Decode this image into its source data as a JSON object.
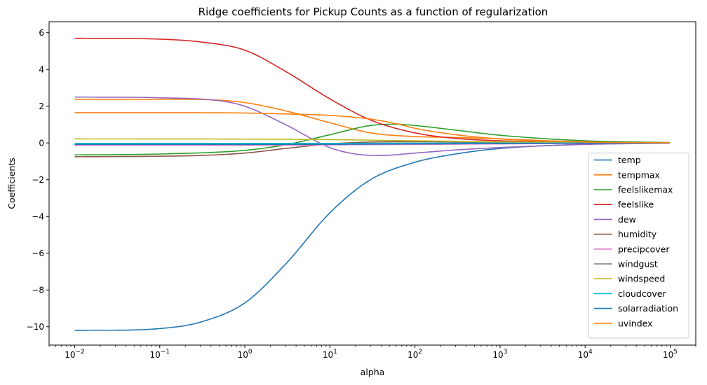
{
  "chart_data": {
    "type": "line",
    "title": "Ridge coefficients for Pickup Counts as a function of regularization",
    "xlabel": "alpha",
    "ylabel": "Coefficients",
    "xscale": "log",
    "xlim": [
      0.005,
      200000
    ],
    "ylim": [
      -11,
      6.6
    ],
    "yticks": [
      -10,
      -8,
      -6,
      -4,
      -2,
      0,
      2,
      4,
      6
    ],
    "ytick_labels": [
      "−10",
      "−8",
      "−6",
      "−4",
      "−2",
      "0",
      "2",
      "4",
      "6"
    ],
    "xticks": [
      0.01,
      0.1,
      1,
      10,
      100,
      1000,
      10000,
      100000
    ],
    "xtick_labels": [
      {
        "base": "10",
        "exp": "−2"
      },
      {
        "base": "10",
        "exp": "−1"
      },
      {
        "base": "10",
        "exp": "0"
      },
      {
        "base": "10",
        "exp": "1"
      },
      {
        "base": "10",
        "exp": "2"
      },
      {
        "base": "10",
        "exp": "3"
      },
      {
        "base": "10",
        "exp": "4"
      },
      {
        "base": "10",
        "exp": "5"
      }
    ],
    "legend_position": "lower right",
    "grid": false,
    "series": [
      {
        "name": "temp",
        "color": "#1f77b4",
        "points": [
          [
            0.01,
            -10.2
          ],
          [
            0.1,
            -10.1
          ],
          [
            0.3,
            -9.75
          ],
          [
            1,
            -8.7
          ],
          [
            3,
            -6.6
          ],
          [
            10,
            -3.8
          ],
          [
            30,
            -2.0
          ],
          [
            100,
            -1.05
          ],
          [
            300,
            -0.6
          ],
          [
            1000,
            -0.3
          ],
          [
            10000,
            -0.07
          ],
          [
            100000,
            0
          ]
        ]
      },
      {
        "name": "tempmax",
        "color": "#ff7f0e",
        "points": [
          [
            0.01,
            2.38
          ],
          [
            0.1,
            2.38
          ],
          [
            0.5,
            2.33
          ],
          [
            1,
            2.2
          ],
          [
            3,
            1.75
          ],
          [
            10,
            1.1
          ],
          [
            30,
            0.55
          ],
          [
            100,
            0.35
          ],
          [
            300,
            0.3
          ],
          [
            1000,
            0.22
          ],
          [
            10000,
            0.06
          ],
          [
            100000,
            0.01
          ]
        ]
      },
      {
        "name": "feelslikemax",
        "color": "#2ca02c",
        "points": [
          [
            0.01,
            -0.65
          ],
          [
            0.1,
            -0.6
          ],
          [
            1,
            -0.4
          ],
          [
            3,
            -0.1
          ],
          [
            10,
            0.45
          ],
          [
            30,
            0.95
          ],
          [
            60,
            1.02
          ],
          [
            100,
            0.95
          ],
          [
            300,
            0.7
          ],
          [
            1000,
            0.42
          ],
          [
            10000,
            0.12
          ],
          [
            100000,
            0.02
          ]
        ]
      },
      {
        "name": "feelslike",
        "color": "#d62728",
        "points": [
          [
            0.01,
            5.7
          ],
          [
            0.1,
            5.65
          ],
          [
            0.3,
            5.5
          ],
          [
            1,
            5.05
          ],
          [
            3,
            3.9
          ],
          [
            10,
            2.4
          ],
          [
            30,
            1.25
          ],
          [
            100,
            0.55
          ],
          [
            300,
            0.25
          ],
          [
            1000,
            0.12
          ],
          [
            10000,
            0.03
          ],
          [
            100000,
            0
          ]
        ]
      },
      {
        "name": "dew",
        "color": "#9467bd",
        "points": [
          [
            0.01,
            2.5
          ],
          [
            0.1,
            2.46
          ],
          [
            0.5,
            2.3
          ],
          [
            1,
            2.0
          ],
          [
            3,
            1.0
          ],
          [
            10,
            -0.25
          ],
          [
            20,
            -0.6
          ],
          [
            40,
            -0.68
          ],
          [
            100,
            -0.55
          ],
          [
            300,
            -0.38
          ],
          [
            1000,
            -0.25
          ],
          [
            10000,
            -0.08
          ],
          [
            100000,
            -0.01
          ]
        ]
      },
      {
        "name": "humidity",
        "color": "#8c564b",
        "points": [
          [
            0.01,
            -0.75
          ],
          [
            0.1,
            -0.72
          ],
          [
            0.3,
            -0.68
          ],
          [
            1,
            -0.55
          ],
          [
            3,
            -0.3
          ],
          [
            10,
            -0.05
          ],
          [
            30,
            0.05
          ],
          [
            100,
            0.07
          ],
          [
            1000,
            0.04
          ],
          [
            10000,
            0.01
          ],
          [
            100000,
            0
          ]
        ]
      },
      {
        "name": "precipcover",
        "color": "#e377c2",
        "points": [
          [
            0.01,
            -0.12
          ],
          [
            1,
            -0.12
          ],
          [
            10,
            -0.1
          ],
          [
            100,
            -0.08
          ],
          [
            1000,
            -0.05
          ],
          [
            10000,
            -0.02
          ],
          [
            100000,
            0
          ]
        ]
      },
      {
        "name": "windgust",
        "color": "#7f7f7f",
        "points": [
          [
            0.01,
            -0.05
          ],
          [
            1,
            -0.05
          ],
          [
            10,
            -0.03
          ],
          [
            100,
            -0.02
          ],
          [
            1000,
            -0.01
          ],
          [
            100000,
            0
          ]
        ]
      },
      {
        "name": "windspeed",
        "color": "#bcbd22",
        "points": [
          [
            0.01,
            0.22
          ],
          [
            1,
            0.21
          ],
          [
            10,
            0.18
          ],
          [
            100,
            0.12
          ],
          [
            1000,
            0.06
          ],
          [
            10000,
            0.02
          ],
          [
            100000,
            0
          ]
        ]
      },
      {
        "name": "cloudcover",
        "color": "#17becf",
        "points": [
          [
            0.01,
            -0.02
          ],
          [
            1,
            -0.02
          ],
          [
            10,
            -0.02
          ],
          [
            100,
            -0.01
          ],
          [
            100000,
            0
          ]
        ]
      },
      {
        "name": "solarradiation",
        "color": "#1f77b4",
        "points": [
          [
            0.01,
            -0.08
          ],
          [
            1,
            -0.08
          ],
          [
            10,
            -0.07
          ],
          [
            100,
            -0.05
          ],
          [
            1000,
            -0.03
          ],
          [
            10000,
            -0.01
          ],
          [
            100000,
            0
          ]
        ]
      },
      {
        "name": "uvindex",
        "color": "#ff7f0e",
        "points": [
          [
            0.01,
            1.65
          ],
          [
            0.1,
            1.65
          ],
          [
            1,
            1.63
          ],
          [
            3,
            1.58
          ],
          [
            10,
            1.5
          ],
          [
            30,
            1.3
          ],
          [
            60,
            1.05
          ],
          [
            100,
            0.8
          ],
          [
            300,
            0.45
          ],
          [
            1000,
            0.22
          ],
          [
            10000,
            0.05
          ],
          [
            100000,
            0.01
          ]
        ]
      }
    ]
  }
}
